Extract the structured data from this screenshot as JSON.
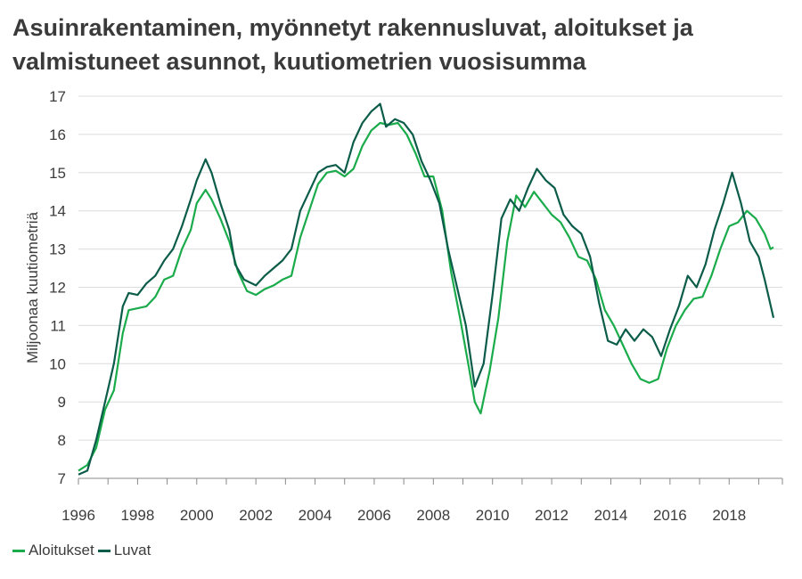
{
  "chart_data": {
    "type": "line",
    "title": [
      "Asuinrakentaminen, myönnetyt rakennusluvat, aloitukset ja",
      "valmistuneet asunnot, kuutiometrien vuosisumma"
    ],
    "ylabel": "Miljoonaa kuutiometriä",
    "xlabel": "",
    "xlim": [
      1996,
      2019.8
    ],
    "ylim": [
      7,
      17
    ],
    "yticks": [
      "7",
      "8",
      "9",
      "10",
      "11",
      "12",
      "13",
      "14",
      "15",
      "16",
      "17"
    ],
    "xticks": [
      "1996",
      "1998",
      "2000",
      "2002",
      "2004",
      "2006",
      "2008",
      "2010",
      "2012",
      "2014",
      "2016",
      "2018"
    ],
    "grid": true,
    "legend_position": "bottom-left",
    "series": [
      {
        "name": "Aloitukset",
        "color": "#1aab4b",
        "points": [
          [
            1996.0,
            7.2
          ],
          [
            1996.3,
            7.35
          ],
          [
            1996.6,
            7.8
          ],
          [
            1996.9,
            8.8
          ],
          [
            1997.2,
            9.3
          ],
          [
            1997.5,
            10.8
          ],
          [
            1997.7,
            11.4
          ],
          [
            1998.0,
            11.45
          ],
          [
            1998.3,
            11.5
          ],
          [
            1998.6,
            11.75
          ],
          [
            1998.9,
            12.2
          ],
          [
            1999.2,
            12.3
          ],
          [
            1999.5,
            13.0
          ],
          [
            1999.8,
            13.5
          ],
          [
            2000.0,
            14.2
          ],
          [
            2000.3,
            14.55
          ],
          [
            2000.5,
            14.3
          ],
          [
            2000.8,
            13.8
          ],
          [
            2001.1,
            13.2
          ],
          [
            2001.4,
            12.4
          ],
          [
            2001.7,
            11.9
          ],
          [
            2002.0,
            11.8
          ],
          [
            2002.3,
            11.95
          ],
          [
            2002.6,
            12.05
          ],
          [
            2002.9,
            12.2
          ],
          [
            2003.2,
            12.3
          ],
          [
            2003.5,
            13.3
          ],
          [
            2003.8,
            14.0
          ],
          [
            2004.1,
            14.7
          ],
          [
            2004.4,
            15.0
          ],
          [
            2004.7,
            15.05
          ],
          [
            2005.0,
            14.9
          ],
          [
            2005.3,
            15.1
          ],
          [
            2005.6,
            15.7
          ],
          [
            2005.9,
            16.1
          ],
          [
            2006.2,
            16.3
          ],
          [
            2006.5,
            16.25
          ],
          [
            2006.8,
            16.3
          ],
          [
            2007.1,
            16.0
          ],
          [
            2007.4,
            15.5
          ],
          [
            2007.7,
            14.9
          ],
          [
            2008.0,
            14.9
          ],
          [
            2008.3,
            14.0
          ],
          [
            2008.6,
            12.4
          ],
          [
            2008.9,
            11.2
          ],
          [
            2009.2,
            9.9
          ],
          [
            2009.4,
            9.0
          ],
          [
            2009.6,
            8.7
          ],
          [
            2009.9,
            9.8
          ],
          [
            2010.2,
            11.2
          ],
          [
            2010.5,
            13.2
          ],
          [
            2010.8,
            14.4
          ],
          [
            2011.1,
            14.1
          ],
          [
            2011.4,
            14.5
          ],
          [
            2011.7,
            14.2
          ],
          [
            2012.0,
            13.9
          ],
          [
            2012.3,
            13.7
          ],
          [
            2012.6,
            13.3
          ],
          [
            2012.9,
            12.8
          ],
          [
            2013.2,
            12.7
          ],
          [
            2013.5,
            12.2
          ],
          [
            2013.8,
            11.4
          ],
          [
            2014.1,
            11.0
          ],
          [
            2014.4,
            10.5
          ],
          [
            2014.7,
            10.0
          ],
          [
            2015.0,
            9.6
          ],
          [
            2015.3,
            9.5
          ],
          [
            2015.6,
            9.6
          ],
          [
            2015.9,
            10.4
          ],
          [
            2016.2,
            11.0
          ],
          [
            2016.5,
            11.4
          ],
          [
            2016.8,
            11.7
          ],
          [
            2017.1,
            11.75
          ],
          [
            2017.4,
            12.3
          ],
          [
            2017.7,
            13.0
          ],
          [
            2018.0,
            13.6
          ],
          [
            2018.3,
            13.7
          ],
          [
            2018.6,
            14.0
          ],
          [
            2018.9,
            13.8
          ],
          [
            2019.2,
            13.4
          ],
          [
            2019.4,
            13.0
          ],
          [
            2019.5,
            13.05
          ]
        ]
      },
      {
        "name": "Luvat",
        "color": "#0b5c49",
        "points": [
          [
            1996.0,
            7.1
          ],
          [
            1996.3,
            7.2
          ],
          [
            1996.6,
            8.0
          ],
          [
            1996.9,
            9.0
          ],
          [
            1997.2,
            10.0
          ],
          [
            1997.5,
            11.5
          ],
          [
            1997.7,
            11.85
          ],
          [
            1998.0,
            11.8
          ],
          [
            1998.3,
            12.1
          ],
          [
            1998.6,
            12.3
          ],
          [
            1998.9,
            12.7
          ],
          [
            1999.2,
            13.0
          ],
          [
            1999.5,
            13.6
          ],
          [
            1999.8,
            14.3
          ],
          [
            2000.0,
            14.8
          ],
          [
            2000.3,
            15.35
          ],
          [
            2000.5,
            15.0
          ],
          [
            2000.8,
            14.2
          ],
          [
            2001.1,
            13.5
          ],
          [
            2001.3,
            12.6
          ],
          [
            2001.6,
            12.2
          ],
          [
            2002.0,
            12.05
          ],
          [
            2002.3,
            12.3
          ],
          [
            2002.6,
            12.5
          ],
          [
            2002.9,
            12.7
          ],
          [
            2003.2,
            13.0
          ],
          [
            2003.5,
            14.0
          ],
          [
            2003.8,
            14.5
          ],
          [
            2004.1,
            15.0
          ],
          [
            2004.4,
            15.15
          ],
          [
            2004.7,
            15.2
          ],
          [
            2005.0,
            15.0
          ],
          [
            2005.3,
            15.8
          ],
          [
            2005.6,
            16.3
          ],
          [
            2005.9,
            16.6
          ],
          [
            2006.2,
            16.8
          ],
          [
            2006.4,
            16.2
          ],
          [
            2006.7,
            16.4
          ],
          [
            2007.0,
            16.3
          ],
          [
            2007.3,
            16.0
          ],
          [
            2007.6,
            15.3
          ],
          [
            2007.9,
            14.8
          ],
          [
            2008.2,
            14.2
          ],
          [
            2008.5,
            13.0
          ],
          [
            2008.8,
            12.0
          ],
          [
            2009.1,
            11.0
          ],
          [
            2009.4,
            9.4
          ],
          [
            2009.7,
            10.0
          ],
          [
            2010.0,
            11.8
          ],
          [
            2010.3,
            13.8
          ],
          [
            2010.6,
            14.3
          ],
          [
            2010.9,
            14.0
          ],
          [
            2011.2,
            14.6
          ],
          [
            2011.5,
            15.1
          ],
          [
            2011.8,
            14.8
          ],
          [
            2012.1,
            14.6
          ],
          [
            2012.4,
            13.9
          ],
          [
            2012.7,
            13.6
          ],
          [
            2013.0,
            13.4
          ],
          [
            2013.3,
            12.8
          ],
          [
            2013.6,
            11.6
          ],
          [
            2013.9,
            10.6
          ],
          [
            2014.2,
            10.5
          ],
          [
            2014.5,
            10.9
          ],
          [
            2014.8,
            10.6
          ],
          [
            2015.1,
            10.9
          ],
          [
            2015.4,
            10.7
          ],
          [
            2015.7,
            10.2
          ],
          [
            2016.0,
            10.9
          ],
          [
            2016.3,
            11.5
          ],
          [
            2016.6,
            12.3
          ],
          [
            2016.9,
            12.0
          ],
          [
            2017.2,
            12.6
          ],
          [
            2017.5,
            13.5
          ],
          [
            2017.8,
            14.2
          ],
          [
            2018.1,
            15.0
          ],
          [
            2018.4,
            14.2
          ],
          [
            2018.7,
            13.2
          ],
          [
            2019.0,
            12.8
          ],
          [
            2019.2,
            12.2
          ],
          [
            2019.5,
            11.2
          ]
        ]
      }
    ]
  }
}
